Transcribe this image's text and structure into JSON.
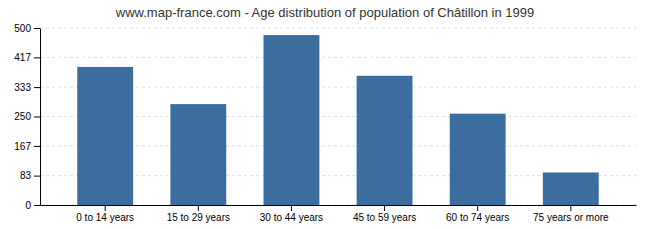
{
  "chart_data": {
    "type": "bar",
    "title": "www.map-france.com - Age distribution of population of Châtillon in 1999",
    "categories": [
      "0 to 14 years",
      "15 to 29 years",
      "30 to 44 years",
      "45 to 59 years",
      "60 to 74 years",
      "75 years or more"
    ],
    "values": [
      390,
      285,
      480,
      365,
      258,
      92
    ],
    "color": "#3b6e9e",
    "ylim": [
      0,
      500
    ],
    "yticks": [
      0,
      83,
      167,
      250,
      333,
      417,
      500
    ],
    "grid": true
  }
}
